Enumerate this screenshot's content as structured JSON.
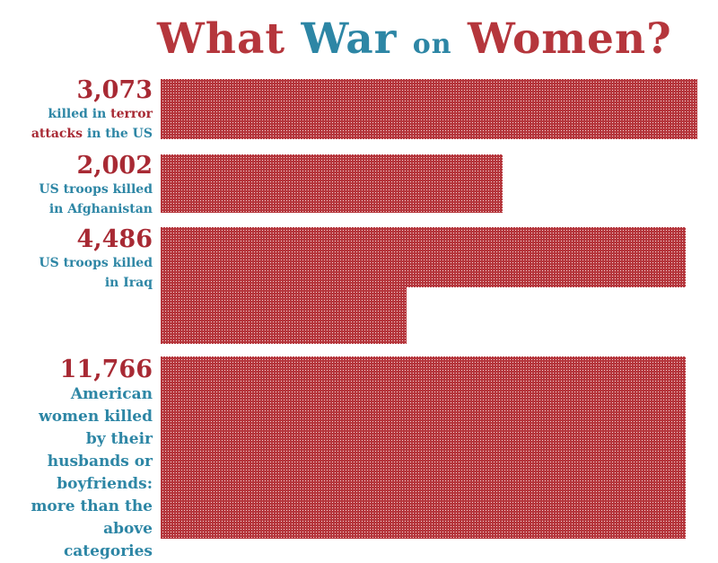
{
  "title": {
    "part1": "What",
    "part2": "War",
    "part3": "on",
    "part4": "Women?"
  },
  "colors": {
    "bar": "#b5363c",
    "bar_dot": "#f2d3d5",
    "number": "#a82a34",
    "blue": "#2d86a5"
  },
  "chart_data": {
    "type": "bar",
    "orientation": "horizontal",
    "style": "pictogram-dots",
    "categories": [
      "killed in terror attacks in the US",
      "US troops killed in Afghanistan",
      "US troops killed in Iraq",
      "American women killed by their husbands or boyfriends: more than the above categories"
    ],
    "values": [
      3073,
      2002,
      4486,
      11766
    ],
    "value_labels": [
      "3,073",
      "2,002",
      "4,486",
      "11,766"
    ],
    "title": "What War on Women?",
    "xlabel": "",
    "ylabel": ""
  },
  "labels": [
    {
      "num": "3,073",
      "line1a": "killed in",
      "line1b": "terror",
      "line2a": "attacks",
      "line2b": "in the US"
    },
    {
      "num": "2,002",
      "line1": "US troops killed",
      "line2": "in Afghanistan"
    },
    {
      "num": "4,486",
      "line1": "US troops killed",
      "line2": "in Iraq"
    },
    {
      "num": "11,766",
      "lines": [
        "American",
        "women killed",
        "by their",
        "husbands or",
        "boyfriends:",
        "more than the",
        "above",
        "categories"
      ]
    }
  ]
}
